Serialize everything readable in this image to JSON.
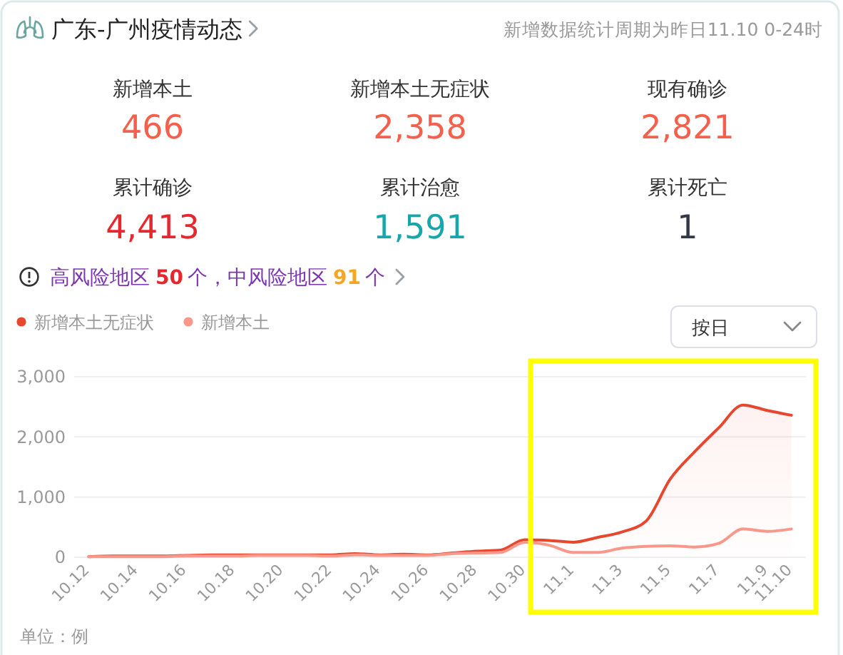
{
  "chart_data": [
    {
      "type": "other",
      "title": "广东-广州疫情动态",
      "subtitle": "新增数据统计周期为昨日11.10 0-24时",
      "categories": [
        "新增本土",
        "新增本土无症状",
        "现有确诊",
        "累计确诊",
        "累计治愈",
        "累计死亡"
      ],
      "value_labels": [
        "466",
        "2,358",
        "2,821",
        "4,413",
        "1,591",
        "1"
      ],
      "colors": [
        "#f4604b",
        "#f4604b",
        "#f4604b",
        "#e8262d",
        "#17a7ab",
        "#323846"
      ],
      "annotations": [
        "高风险地区",
        "50",
        "个，中风险地区",
        "91",
        "个"
      ]
    },
    {
      "type": "line",
      "categories": [
        "10.12",
        null,
        "10.14",
        null,
        "10.16",
        null,
        "10.18",
        null,
        "10.20",
        null,
        "10.22",
        null,
        "10.24",
        null,
        "10.26",
        null,
        "10.28",
        null,
        "10.30",
        null,
        "11.1",
        null,
        "11.3",
        null,
        "11.5",
        null,
        "11.7",
        null,
        "11.9",
        "11.10"
      ],
      "series": [
        {
          "name": "新增本土无症状",
          "type": "area",
          "color": "#e8472f",
          "values": [
            10,
            20,
            20,
            20,
            30,
            40,
            40,
            40,
            40,
            40,
            40,
            60,
            40,
            50,
            40,
            70,
            100,
            120,
            290,
            280,
            250,
            330,
            420,
            600,
            1300,
            1750,
            2150,
            2530,
            2440,
            2360
          ]
        },
        {
          "name": "新增本土",
          "type": "line",
          "color": "#f8988b",
          "values": [
            10,
            10,
            10,
            10,
            20,
            20,
            20,
            30,
            30,
            30,
            20,
            40,
            30,
            30,
            30,
            60,
            70,
            80,
            250,
            200,
            80,
            80,
            150,
            180,
            190,
            170,
            230,
            470,
            430,
            470
          ]
        }
      ],
      "ylim": [
        0,
        3000
      ],
      "yticks": [
        0,
        {
          "value": 1000,
          "label": "1,000"
        },
        {
          "value": 2000,
          "label": "2,000"
        },
        {
          "value": 3000,
          "label": "3,000"
        }
      ],
      "grid": "y",
      "legend": "top left",
      "ylabel": "单位：例",
      "annotations": [
        "按日"
      ]
    }
  ]
}
